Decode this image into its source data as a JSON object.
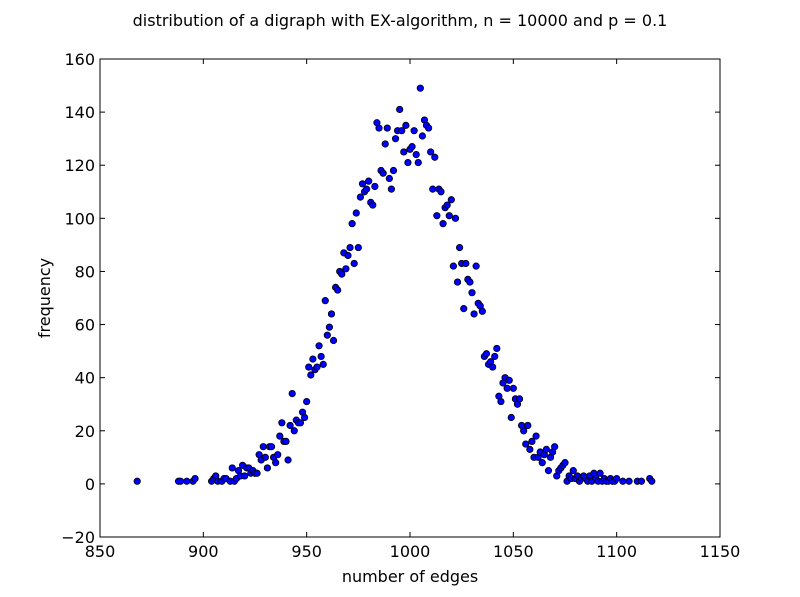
{
  "chart_data": {
    "type": "scatter",
    "title": "distribution of a digraph with EX-algorithm, n = 10000 and p = 0.1",
    "xlabel": "number of edges",
    "ylabel": "frequency",
    "xlim": [
      850,
      1150
    ],
    "ylim": [
      -20,
      160
    ],
    "xticks": [
      850,
      900,
      950,
      1000,
      1050,
      1100,
      1150
    ],
    "yticks": [
      -20,
      0,
      20,
      40,
      60,
      80,
      100,
      120,
      140,
      160
    ],
    "xtick_labels": [
      "850",
      "900",
      "950",
      "1000",
      "1050",
      "1100",
      "1150"
    ],
    "ytick_labels": [
      "−20",
      "0",
      "20",
      "40",
      "60",
      "80",
      "100",
      "120",
      "140",
      "160"
    ],
    "marker_color": "#0000ff",
    "marker_edge_color": "#000000",
    "grid": false,
    "legend": "none",
    "points": [
      [
        868,
        1
      ],
      [
        888,
        1
      ],
      [
        889,
        1
      ],
      [
        892,
        1
      ],
      [
        895,
        1
      ],
      [
        896,
        2
      ],
      [
        904,
        1
      ],
      [
        905,
        2
      ],
      [
        906,
        3
      ],
      [
        907,
        1
      ],
      [
        909,
        1
      ],
      [
        910,
        2
      ],
      [
        911,
        2
      ],
      [
        913,
        1
      ],
      [
        914,
        6
      ],
      [
        915,
        1
      ],
      [
        916,
        2
      ],
      [
        917,
        5
      ],
      [
        918,
        3
      ],
      [
        919,
        7
      ],
      [
        920,
        3
      ],
      [
        921,
        6
      ],
      [
        922,
        6
      ],
      [
        923,
        4
      ],
      [
        924,
        5
      ],
      [
        925,
        4
      ],
      [
        926,
        4
      ],
      [
        927,
        11
      ],
      [
        928,
        9
      ],
      [
        929,
        14
      ],
      [
        930,
        10
      ],
      [
        931,
        6
      ],
      [
        932,
        14
      ],
      [
        933,
        14
      ],
      [
        934,
        10
      ],
      [
        935,
        8
      ],
      [
        936,
        11
      ],
      [
        937,
        18
      ],
      [
        938,
        23
      ],
      [
        939,
        16
      ],
      [
        940,
        16
      ],
      [
        941,
        9
      ],
      [
        942,
        22
      ],
      [
        943,
        34
      ],
      [
        944,
        20
      ],
      [
        945,
        24
      ],
      [
        946,
        23
      ],
      [
        947,
        23
      ],
      [
        948,
        27
      ],
      [
        949,
        25
      ],
      [
        950,
        31
      ],
      [
        951,
        44
      ],
      [
        952,
        41
      ],
      [
        953,
        47
      ],
      [
        954,
        43
      ],
      [
        955,
        44
      ],
      [
        956,
        52
      ],
      [
        957,
        48
      ],
      [
        958,
        45
      ],
      [
        959,
        69
      ],
      [
        960,
        56
      ],
      [
        961,
        59
      ],
      [
        962,
        64
      ],
      [
        963,
        54
      ],
      [
        964,
        74
      ],
      [
        965,
        73
      ],
      [
        966,
        80
      ],
      [
        967,
        79
      ],
      [
        968,
        87
      ],
      [
        969,
        81
      ],
      [
        970,
        86
      ],
      [
        971,
        89
      ],
      [
        972,
        98
      ],
      [
        973,
        83
      ],
      [
        974,
        102
      ],
      [
        975,
        89
      ],
      [
        976,
        108
      ],
      [
        977,
        113
      ],
      [
        978,
        110
      ],
      [
        979,
        111
      ],
      [
        980,
        114
      ],
      [
        981,
        106
      ],
      [
        982,
        105
      ],
      [
        983,
        112
      ],
      [
        984,
        136
      ],
      [
        985,
        134
      ],
      [
        986,
        118
      ],
      [
        987,
        117
      ],
      [
        988,
        128
      ],
      [
        989,
        134
      ],
      [
        990,
        115
      ],
      [
        991,
        111
      ],
      [
        992,
        118
      ],
      [
        993,
        130
      ],
      [
        994,
        133
      ],
      [
        995,
        141
      ],
      [
        996,
        133
      ],
      [
        997,
        125
      ],
      [
        998,
        135
      ],
      [
        999,
        121
      ],
      [
        1000,
        126
      ],
      [
        1001,
        127
      ],
      [
        1002,
        133
      ],
      [
        1003,
        124
      ],
      [
        1004,
        121
      ],
      [
        1005,
        149
      ],
      [
        1006,
        131
      ],
      [
        1007,
        137
      ],
      [
        1008,
        135
      ],
      [
        1009,
        134
      ],
      [
        1010,
        125
      ],
      [
        1011,
        111
      ],
      [
        1012,
        123
      ],
      [
        1013,
        101
      ],
      [
        1014,
        111
      ],
      [
        1015,
        110
      ],
      [
        1016,
        98
      ],
      [
        1017,
        104
      ],
      [
        1018,
        105
      ],
      [
        1019,
        101
      ],
      [
        1020,
        107
      ],
      [
        1021,
        82
      ],
      [
        1022,
        100
      ],
      [
        1023,
        76
      ],
      [
        1024,
        89
      ],
      [
        1025,
        83
      ],
      [
        1026,
        66
      ],
      [
        1027,
        83
      ],
      [
        1028,
        77
      ],
      [
        1029,
        76
      ],
      [
        1030,
        72
      ],
      [
        1031,
        64
      ],
      [
        1032,
        82
      ],
      [
        1033,
        68
      ],
      [
        1034,
        67
      ],
      [
        1035,
        65
      ],
      [
        1036,
        48
      ],
      [
        1037,
        49
      ],
      [
        1038,
        45
      ],
      [
        1039,
        46
      ],
      [
        1040,
        44
      ],
      [
        1041,
        48
      ],
      [
        1042,
        51
      ],
      [
        1043,
        33
      ],
      [
        1044,
        31
      ],
      [
        1045,
        38
      ],
      [
        1046,
        40
      ],
      [
        1047,
        36
      ],
      [
        1048,
        39
      ],
      [
        1049,
        25
      ],
      [
        1050,
        36
      ],
      [
        1051,
        32
      ],
      [
        1052,
        30
      ],
      [
        1053,
        32
      ],
      [
        1054,
        22
      ],
      [
        1055,
        20
      ],
      [
        1056,
        15
      ],
      [
        1057,
        22
      ],
      [
        1058,
        13
      ],
      [
        1059,
        16
      ],
      [
        1060,
        10
      ],
      [
        1061,
        18
      ],
      [
        1062,
        10
      ],
      [
        1063,
        12
      ],
      [
        1064,
        8
      ],
      [
        1065,
        11
      ],
      [
        1066,
        13
      ],
      [
        1067,
        5
      ],
      [
        1068,
        10
      ],
      [
        1069,
        12
      ],
      [
        1070,
        14
      ],
      [
        1071,
        3
      ],
      [
        1072,
        5
      ],
      [
        1073,
        6
      ],
      [
        1074,
        7
      ],
      [
        1075,
        8
      ],
      [
        1076,
        1
      ],
      [
        1077,
        3
      ],
      [
        1078,
        2
      ],
      [
        1079,
        5
      ],
      [
        1080,
        2
      ],
      [
        1081,
        3
      ],
      [
        1082,
        1
      ],
      [
        1083,
        2
      ],
      [
        1084,
        3
      ],
      [
        1085,
        2
      ],
      [
        1086,
        1
      ],
      [
        1087,
        3
      ],
      [
        1088,
        1
      ],
      [
        1089,
        4
      ],
      [
        1090,
        2
      ],
      [
        1091,
        1
      ],
      [
        1092,
        4
      ],
      [
        1093,
        1
      ],
      [
        1094,
        2
      ],
      [
        1095,
        1
      ],
      [
        1096,
        1
      ],
      [
        1097,
        2
      ],
      [
        1098,
        1
      ],
      [
        1099,
        1
      ],
      [
        1100,
        2
      ],
      [
        1103,
        1
      ],
      [
        1106,
        1
      ],
      [
        1110,
        1
      ],
      [
        1112,
        1
      ],
      [
        1116,
        2
      ],
      [
        1117,
        1
      ]
    ]
  }
}
